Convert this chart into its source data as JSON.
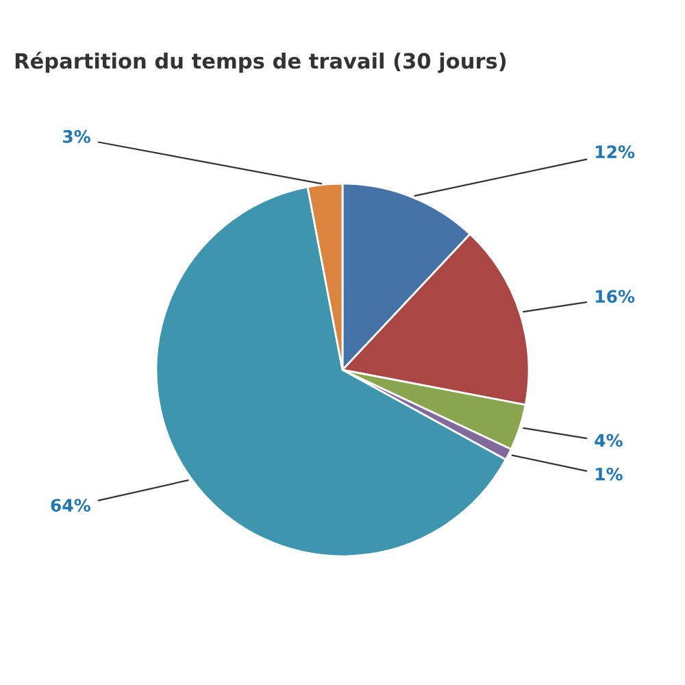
{
  "chart_data": {
    "type": "pie",
    "title": "Répartition du temps de travail (30 jours)",
    "categories": [
      null,
      null,
      null,
      null,
      null,
      null
    ],
    "values": [
      12,
      16,
      4,
      1,
      64,
      3
    ],
    "colors": [
      "#4572a7",
      "#aa4643",
      "#89a54e",
      "#80699b",
      "#3d96ae",
      "#db843d"
    ],
    "value_labels": [
      "12%",
      "16%",
      "4%",
      "1%",
      "64%",
      "3%"
    ]
  }
}
